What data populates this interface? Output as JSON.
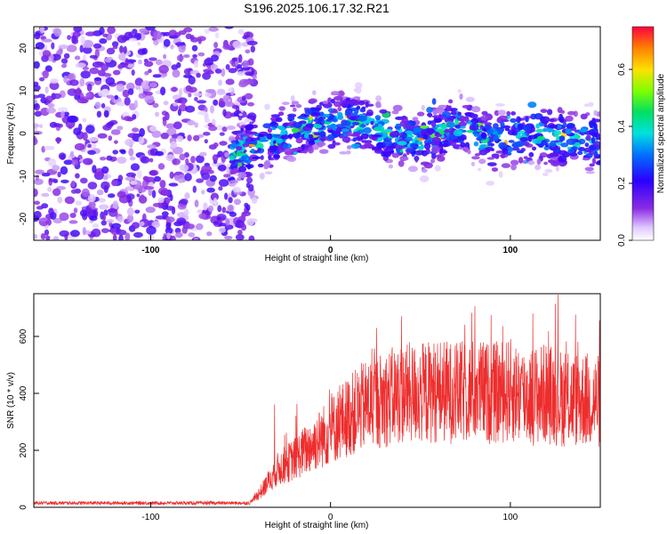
{
  "title": "S196.2025.106.17.32.R21",
  "colors": {
    "line": "#ee2d2d",
    "axis": "#000000"
  },
  "chart_data": [
    {
      "type": "heatmap",
      "xlabel": "Height of straight line (km)",
      "ylabel": "Frequency (Hz)",
      "xlim": [
        -165,
        150
      ],
      "ylim": [
        -25,
        25
      ],
      "x_ticks": [
        "-100",
        "0",
        "100"
      ],
      "y_ticks": [
        "-20",
        "-10",
        "0",
        "10",
        "20"
      ],
      "colorbar": {
        "label": "Normalized spectral amplitude",
        "range": [
          0.0,
          0.75
        ],
        "ticks": [
          "0.0",
          "0.2",
          "0.4",
          "0.6"
        ],
        "colormap": "rainbow"
      },
      "noise_region_x": [
        -165,
        -50
      ],
      "signal_band": [
        {
          "x": -50,
          "f": -4
        },
        {
          "x": -30,
          "f": -1
        },
        {
          "x": -10,
          "f": 2
        },
        {
          "x": 10,
          "f": 3
        },
        {
          "x": 30,
          "f": 0
        },
        {
          "x": 50,
          "f": -2
        },
        {
          "x": 70,
          "f": 2
        },
        {
          "x": 90,
          "f": -2
        },
        {
          "x": 110,
          "f": 0
        },
        {
          "x": 130,
          "f": -1
        },
        {
          "x": 150,
          "f": -2
        }
      ]
    },
    {
      "type": "line",
      "xlabel": "Height of straight line (km)",
      "ylabel": "SNR (10 * v/v)",
      "xlim": [
        -165,
        150
      ],
      "ylim": [
        0,
        750
      ],
      "x_ticks": [
        "-100",
        "0",
        "100"
      ],
      "y_ticks": [
        "0",
        "200",
        "400",
        "600"
      ],
      "series": [
        {
          "x": [
            -165,
            -120,
            -80,
            -45,
            -38,
            -30,
            -20,
            -10,
            0,
            10,
            20,
            30,
            40,
            50,
            60,
            70,
            80,
            90,
            100,
            110,
            120,
            130,
            140,
            150
          ],
          "y": [
            15,
            15,
            15,
            15,
            60,
            130,
            170,
            220,
            270,
            320,
            360,
            380,
            400,
            400,
            410,
            400,
            410,
            400,
            410,
            390,
            400,
            380,
            380,
            370
          ]
        }
      ]
    }
  ]
}
